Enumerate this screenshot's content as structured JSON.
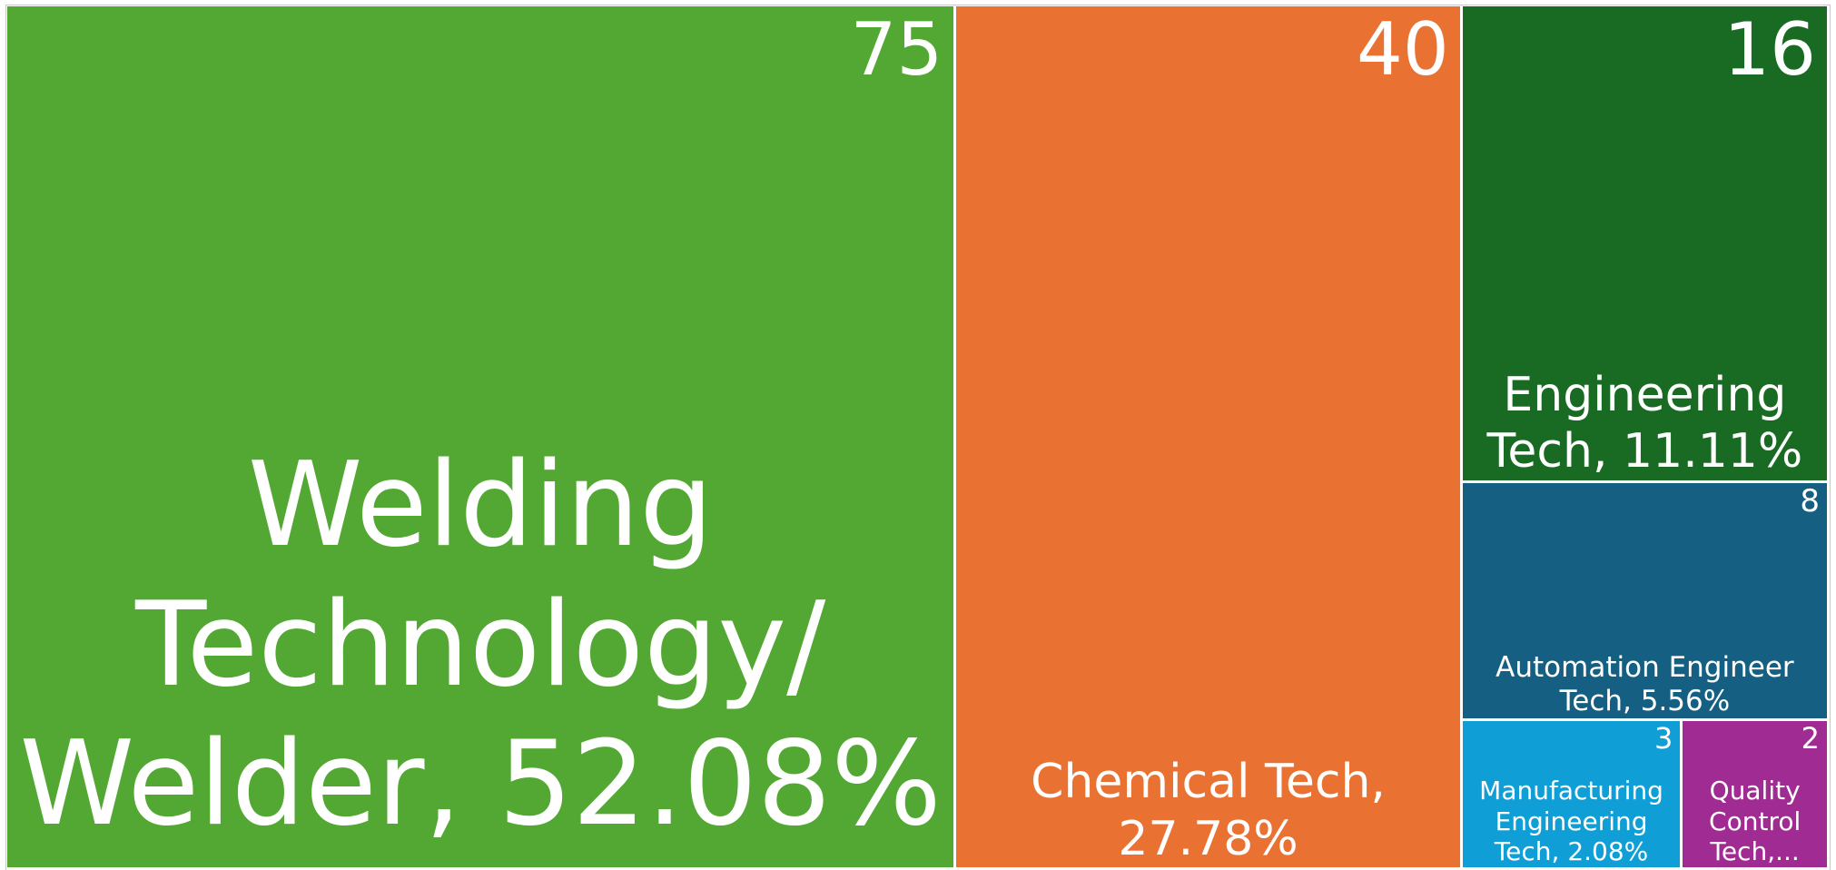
{
  "chart_data": {
    "type": "treemap",
    "labels": [
      "Welding Technology/ Welder, 52.08%",
      "Chemical Tech, 27.78%",
      "Engineering Tech, 11.11%",
      "Automation Engineer Tech, 5.56%",
      "Manufacturing Engineering Tech, 2.08%",
      "Quality Control Tech,..."
    ],
    "values": [
      75,
      40,
      16,
      8,
      3,
      2
    ],
    "colors": [
      "#52a832",
      "#e97132",
      "#196b24",
      "#156082",
      "#0f9ed5",
      "#a02b93"
    ]
  }
}
